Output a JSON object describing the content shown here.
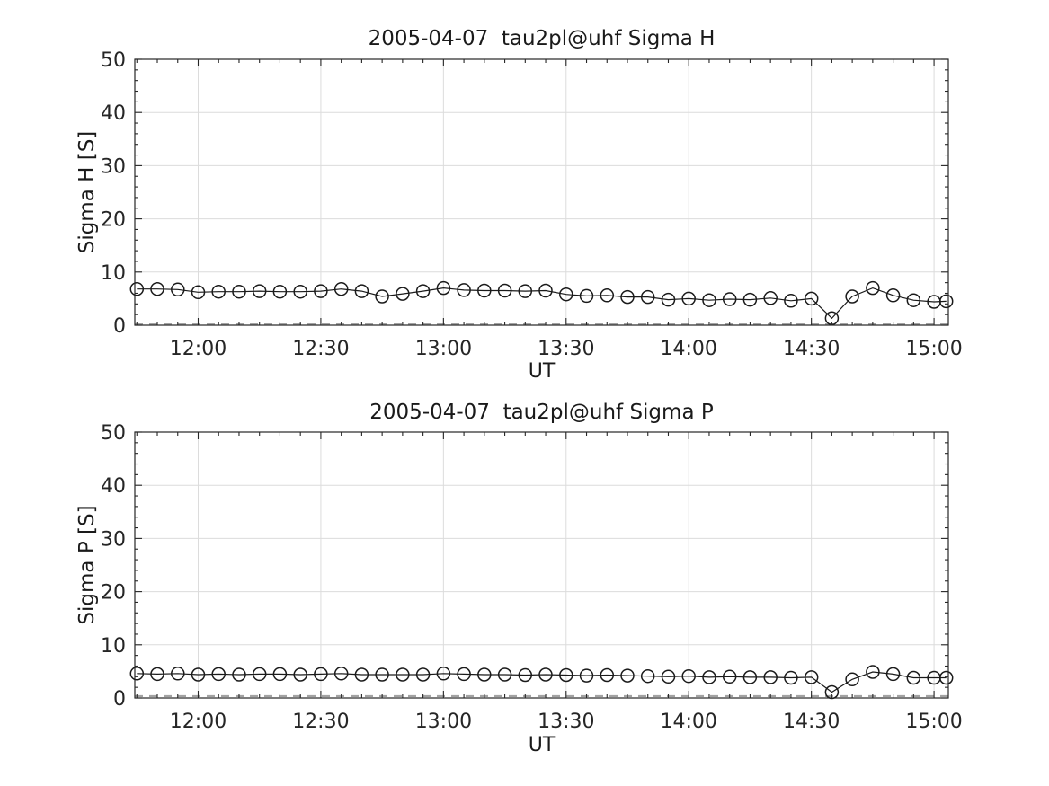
{
  "figure": {
    "background": "#ffffff",
    "axis_color": "#262626",
    "grid_color": "#dcdcdc",
    "data_color": "#1a1a1a",
    "dashed_line_color": "#a3a3a3"
  },
  "chart_data": [
    {
      "type": "line",
      "title": "2005-04-07  tau2pl@uhf Sigma H",
      "xlabel": "UT",
      "ylabel": "Sigma H [S]",
      "ylim": [
        0,
        50
      ],
      "ytick_values": [
        0,
        10,
        20,
        30,
        40,
        50
      ],
      "y_minor_step": 2,
      "xlim_minutes_ut": [
        704.5,
        903.5
      ],
      "xtick_minutes": [
        720,
        750,
        780,
        810,
        840,
        870,
        900
      ],
      "xtick_labels": [
        "12:00",
        "12:30",
        "13:00",
        "13:30",
        "14:00",
        "14:30",
        "15:00"
      ],
      "x_minor_step_minutes": 5,
      "grid": "major",
      "legend": "none",
      "marker": "open-circle",
      "x_minutes": [
        705,
        710,
        715,
        720,
        725,
        730,
        735,
        740,
        745,
        750,
        755,
        760,
        765,
        770,
        775,
        780,
        785,
        790,
        795,
        800,
        805,
        810,
        815,
        820,
        825,
        830,
        835,
        840,
        845,
        850,
        855,
        860,
        865,
        870,
        875,
        880,
        885,
        890,
        895,
        900,
        903
      ],
      "series": [
        {
          "name": "Sigma H",
          "style": "solid-line-open-circle-markers",
          "color": "#1a1a1a",
          "values": [
            6.8,
            6.8,
            6.7,
            6.2,
            6.3,
            6.3,
            6.4,
            6.3,
            6.3,
            6.4,
            6.8,
            6.4,
            5.4,
            5.9,
            6.4,
            7.0,
            6.6,
            6.5,
            6.5,
            6.4,
            6.5,
            5.8,
            5.5,
            5.6,
            5.3,
            5.3,
            4.8,
            5.0,
            4.7,
            4.9,
            4.8,
            5.1,
            4.6,
            5.0,
            1.3,
            5.4,
            7.0,
            5.6,
            4.7,
            4.4,
            4.5
          ]
        },
        {
          "name": "near-zero dashed baseline",
          "style": "dashed-constant",
          "color": "#a3a3a3",
          "constant_value": 0.15
        }
      ]
    },
    {
      "type": "line",
      "title": "2005-04-07  tau2pl@uhf Sigma P",
      "xlabel": "UT",
      "ylabel": "Sigma P [S]",
      "ylim": [
        0,
        50
      ],
      "ytick_values": [
        0,
        10,
        20,
        30,
        40,
        50
      ],
      "y_minor_step": 2,
      "xlim_minutes_ut": [
        704.5,
        903.5
      ],
      "xtick_minutes": [
        720,
        750,
        780,
        810,
        840,
        870,
        900
      ],
      "xtick_labels": [
        "12:00",
        "12:30",
        "13:00",
        "13:30",
        "14:00",
        "14:30",
        "15:00"
      ],
      "x_minor_step_minutes": 5,
      "grid": "major",
      "legend": "none",
      "marker": "open-circle",
      "x_minutes": [
        705,
        710,
        715,
        720,
        725,
        730,
        735,
        740,
        745,
        750,
        755,
        760,
        765,
        770,
        775,
        780,
        785,
        790,
        795,
        800,
        805,
        810,
        815,
        820,
        825,
        830,
        835,
        840,
        845,
        850,
        855,
        860,
        865,
        870,
        875,
        880,
        885,
        890,
        895,
        900,
        903
      ],
      "series": [
        {
          "name": "Sigma P",
          "style": "solid-line-open-circle-markers",
          "color": "#1a1a1a",
          "values": [
            4.6,
            4.5,
            4.6,
            4.4,
            4.5,
            4.4,
            4.5,
            4.5,
            4.4,
            4.5,
            4.6,
            4.4,
            4.4,
            4.4,
            4.4,
            4.6,
            4.5,
            4.4,
            4.4,
            4.3,
            4.4,
            4.3,
            4.2,
            4.3,
            4.2,
            4.1,
            4.0,
            4.1,
            3.9,
            4.0,
            3.9,
            3.9,
            3.8,
            3.9,
            1.1,
            3.5,
            4.9,
            4.5,
            3.8,
            3.8,
            3.8
          ]
        },
        {
          "name": "near-zero dashed baseline",
          "style": "dashed-constant",
          "color": "#a3a3a3",
          "constant_value": 0.35
        }
      ]
    }
  ]
}
